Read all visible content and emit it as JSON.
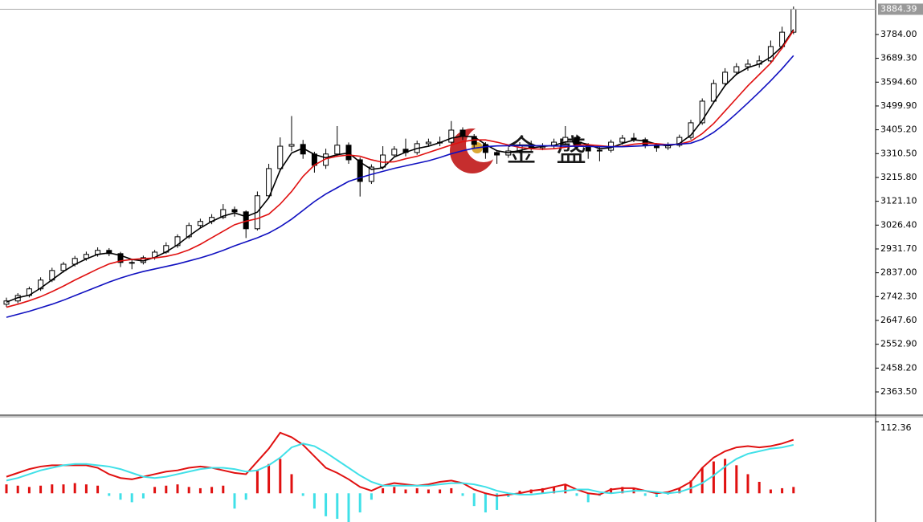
{
  "watermark": "金 盛",
  "chart_data": [
    {
      "type": "candlestick",
      "candles": [
        [
          2712,
          2738,
          2702,
          2725
        ],
        [
          2725,
          2756,
          2716,
          2747
        ],
        [
          2747,
          2782,
          2739,
          2773
        ],
        [
          2773,
          2819,
          2765,
          2808
        ],
        [
          2808,
          2857,
          2800,
          2846
        ],
        [
          2846,
          2880,
          2838,
          2871
        ],
        [
          2871,
          2904,
          2862,
          2894
        ],
        [
          2894,
          2921,
          2885,
          2910
        ],
        [
          2910,
          2938,
          2901,
          2926
        ],
        [
          2926,
          2935,
          2903,
          2913
        ],
        [
          2913,
          2920,
          2860,
          2878
        ],
        [
          2878,
          2893,
          2851,
          2878
        ],
        [
          2878,
          2905,
          2870,
          2897
        ],
        [
          2897,
          2928,
          2889,
          2919
        ],
        [
          2919,
          2958,
          2912,
          2945
        ],
        [
          2945,
          2990,
          2936,
          2980
        ],
        [
          2980,
          3036,
          2972,
          3025
        ],
        [
          3025,
          3052,
          3016,
          3041
        ],
        [
          3041,
          3070,
          3030,
          3057
        ],
        [
          3057,
          3110,
          3050,
          3088
        ],
        [
          3088,
          3100,
          3060,
          3079
        ],
        [
          3079,
          3085,
          2975,
          3012
        ],
        [
          3012,
          3160,
          3005,
          3143
        ],
        [
          3143,
          3270,
          3135,
          3251
        ],
        [
          3251,
          3375,
          3240,
          3340
        ],
        [
          3340,
          3460,
          3320,
          3347
        ],
        [
          3347,
          3365,
          3290,
          3309
        ],
        [
          3309,
          3318,
          3235,
          3264
        ],
        [
          3264,
          3330,
          3250,
          3309
        ],
        [
          3309,
          3420,
          3298,
          3344
        ],
        [
          3344,
          3355,
          3270,
          3286
        ],
        [
          3286,
          3295,
          3140,
          3200
        ],
        [
          3200,
          3268,
          3190,
          3257
        ],
        [
          3257,
          3340,
          3248,
          3305
        ],
        [
          3305,
          3340,
          3296,
          3328
        ],
        [
          3328,
          3370,
          3300,
          3315
        ],
        [
          3315,
          3362,
          3306,
          3350
        ],
        [
          3350,
          3370,
          3338,
          3356
        ],
        [
          3356,
          3378,
          3340,
          3356
        ],
        [
          3356,
          3440,
          3348,
          3404
        ],
        [
          3404,
          3415,
          3365,
          3379
        ],
        [
          3379,
          3388,
          3330,
          3347
        ],
        [
          3347,
          3356,
          3290,
          3315
        ],
        [
          3315,
          3325,
          3270,
          3305
        ],
        [
          3305,
          3336,
          3294,
          3321
        ],
        [
          3321,
          3356,
          3312,
          3344
        ],
        [
          3344,
          3362,
          3322,
          3334
        ],
        [
          3334,
          3352,
          3324,
          3340
        ],
        [
          3340,
          3370,
          3330,
          3356
        ],
        [
          3356,
          3420,
          3346,
          3375
        ],
        [
          3375,
          3386,
          3330,
          3344
        ],
        [
          3344,
          3352,
          3290,
          3321
        ],
        [
          3321,
          3336,
          3280,
          3324
        ],
        [
          3324,
          3366,
          3315,
          3356
        ],
        [
          3356,
          3385,
          3346,
          3372
        ],
        [
          3372,
          3392,
          3356,
          3366
        ],
        [
          3366,
          3374,
          3332,
          3344
        ],
        [
          3344,
          3352,
          3318,
          3334
        ],
        [
          3334,
          3355,
          3325,
          3344
        ],
        [
          3344,
          3386,
          3336,
          3375
        ],
        [
          3375,
          3445,
          3366,
          3433
        ],
        [
          3433,
          3530,
          3425,
          3519
        ],
        [
          3519,
          3604,
          3510,
          3589
        ],
        [
          3589,
          3650,
          3578,
          3634
        ],
        [
          3634,
          3670,
          3622,
          3656
        ],
        [
          3656,
          3685,
          3640,
          3666
        ],
        [
          3666,
          3700,
          3652,
          3679
        ],
        [
          3679,
          3760,
          3670,
          3736
        ],
        [
          3736,
          3815,
          3726,
          3793
        ],
        [
          3793,
          3895,
          3785,
          3884.39
        ]
      ],
      "up_color": "#ffffff",
      "down_color": "#000000",
      "series": [
        {
          "color": "#000000",
          "values": [
            2720,
            2738,
            2748,
            2776,
            2809,
            2842,
            2870,
            2892,
            2910,
            2916,
            2906,
            2890,
            2884,
            2898,
            2920,
            2948,
            2983,
            3015,
            3041,
            3062,
            3075,
            3060,
            3078,
            3135,
            3245,
            3313,
            3332,
            3307,
            3294,
            3306,
            3313,
            3277,
            3248,
            3254,
            3297,
            3316,
            3331,
            3340,
            3354,
            3372,
            3380,
            3377,
            3347,
            3322,
            3314,
            3323,
            3333,
            3339,
            3343,
            3357,
            3358,
            3347,
            3330,
            3334,
            3351,
            3365,
            3361,
            3348,
            3341,
            3351,
            3384,
            3442,
            3514,
            3581,
            3626,
            3652,
            3667,
            3694,
            3736,
            3804
          ]
        },
        {
          "color": "#e01010",
          "values": [
            2700,
            2712,
            2726,
            2742,
            2762,
            2784,
            2808,
            2830,
            2852,
            2872,
            2884,
            2890,
            2893,
            2896,
            2902,
            2912,
            2928,
            2950,
            2976,
            3002,
            3028,
            3042,
            3052,
            3070,
            3110,
            3160,
            3220,
            3265,
            3290,
            3300,
            3305,
            3300,
            3286,
            3276,
            3278,
            3290,
            3300,
            3315,
            3330,
            3345,
            3358,
            3365,
            3365,
            3356,
            3345,
            3335,
            3330,
            3328,
            3330,
            3336,
            3344,
            3346,
            3342,
            3338,
            3340,
            3348,
            3352,
            3350,
            3346,
            3348,
            3360,
            3390,
            3430,
            3480,
            3530,
            3580,
            3625,
            3670,
            3730,
            3800
          ]
        },
        {
          "color": "#1010c0",
          "values": [
            2660,
            2672,
            2684,
            2698,
            2712,
            2728,
            2746,
            2764,
            2782,
            2800,
            2816,
            2830,
            2842,
            2852,
            2862,
            2872,
            2884,
            2896,
            2910,
            2926,
            2944,
            2960,
            2976,
            2995,
            3020,
            3050,
            3085,
            3120,
            3150,
            3175,
            3200,
            3215,
            3228,
            3240,
            3252,
            3262,
            3272,
            3282,
            3295,
            3310,
            3322,
            3332,
            3338,
            3341,
            3342,
            3342,
            3342,
            3342,
            3341,
            3340,
            3340,
            3339,
            3338,
            3338,
            3338,
            3340,
            3342,
            3344,
            3346,
            3348,
            3352,
            3368,
            3395,
            3430,
            3470,
            3512,
            3555,
            3600,
            3648,
            3700
          ]
        }
      ],
      "ylim": [
        2271,
        3921
      ],
      "yticks": [
        {
          "value": 3784.0,
          "label": "3784.00"
        },
        {
          "value": 3689.3,
          "label": "3689.30"
        },
        {
          "value": 3594.6,
          "label": "3594.60"
        },
        {
          "value": 3499.9,
          "label": "3499.90"
        },
        {
          "value": 3405.2,
          "label": "3405.20"
        },
        {
          "value": 3310.5,
          "label": "3310.50"
        },
        {
          "value": 3215.8,
          "label": "3215.80"
        },
        {
          "value": 3121.1,
          "label": "3121.10"
        },
        {
          "value": 3026.4,
          "label": "3026.40"
        },
        {
          "value": 2931.7,
          "label": "2931.70"
        },
        {
          "value": 2837.0,
          "label": "2837.00"
        },
        {
          "value": 2742.3,
          "label": "2742.30"
        },
        {
          "value": 2647.6,
          "label": "2647.60"
        },
        {
          "value": 2552.9,
          "label": "2552.90"
        },
        {
          "value": 2458.2,
          "label": "2458.20"
        },
        {
          "value": 2363.5,
          "label": "2363.50"
        }
      ]
    },
    {
      "type": "macd",
      "histogram": [
        14,
        12,
        10,
        12,
        14,
        14,
        16,
        14,
        12,
        -4,
        -10,
        -14,
        -8,
        10,
        12,
        14,
        10,
        8,
        10,
        12,
        -24,
        -10,
        36,
        46,
        54,
        30,
        -4,
        -24,
        -36,
        -40,
        -45,
        -30,
        -10,
        8,
        10,
        6,
        8,
        6,
        6,
        8,
        -4,
        -20,
        -30,
        -26,
        -6,
        4,
        6,
        8,
        10,
        14,
        -4,
        -14,
        -4,
        8,
        10,
        8,
        -4,
        -6,
        -2,
        8,
        20,
        40,
        50,
        54,
        44,
        30,
        18,
        6,
        8,
        10
      ],
      "up_color": "#e01010",
      "down_color": "#40e0e8",
      "series": [
        {
          "color": "#e01010",
          "values": [
            26,
            32,
            38,
            42,
            44,
            44,
            44,
            44,
            40,
            30,
            24,
            22,
            26,
            30,
            34,
            36,
            40,
            42,
            40,
            36,
            32,
            30,
            50,
            70,
            95,
            88,
            76,
            58,
            40,
            32,
            22,
            10,
            4,
            12,
            16,
            14,
            12,
            14,
            18,
            20,
            16,
            6,
            0,
            -4,
            -2,
            0,
            4,
            6,
            10,
            14,
            6,
            0,
            -2,
            6,
            8,
            8,
            4,
            0,
            2,
            8,
            18,
            40,
            56,
            66,
            72,
            74,
            72,
            74,
            78,
            84
          ]
        },
        {
          "color": "#40e0e8",
          "values": [
            20,
            24,
            30,
            36,
            40,
            44,
            46,
            46,
            44,
            42,
            38,
            32,
            26,
            24,
            26,
            30,
            34,
            38,
            40,
            40,
            38,
            34,
            36,
            44,
            56,
            72,
            78,
            74,
            64,
            52,
            40,
            28,
            18,
            12,
            12,
            12,
            12,
            12,
            14,
            16,
            16,
            14,
            10,
            4,
            0,
            -2,
            -2,
            0,
            2,
            4,
            6,
            6,
            2,
            0,
            2,
            4,
            4,
            2,
            0,
            2,
            8,
            16,
            28,
            42,
            54,
            62,
            66,
            70,
            72,
            76
          ]
        }
      ],
      "ylim": [
        -45,
        120
      ],
      "yticks": [
        112.36
      ]
    }
  ]
}
